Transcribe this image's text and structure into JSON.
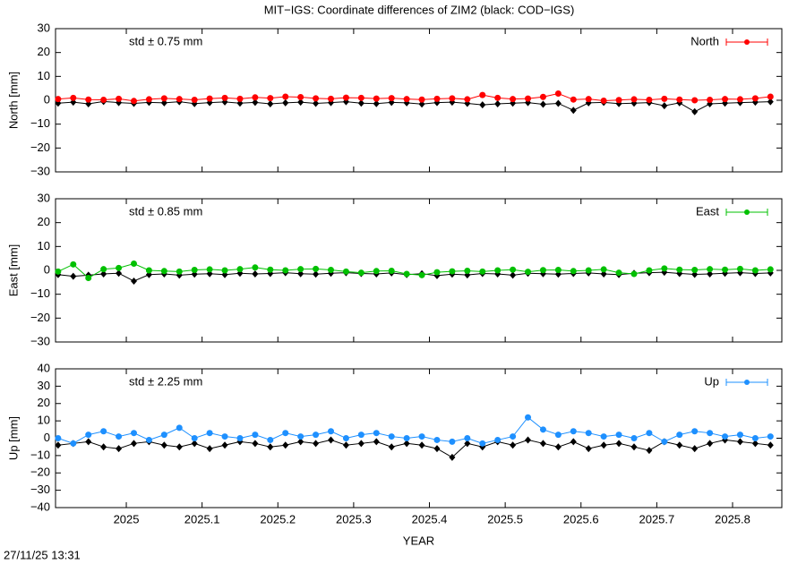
{
  "title": "MIT−IGS: Coordinate differences of ZIM2 (black: COD−IGS)",
  "timestamp": "27/11/25 13:31",
  "chart_data": [
    {
      "type": "scatter",
      "ylabel": "North [mm]",
      "annotation": "std ± 0.75 mm",
      "legend": "upper right",
      "xlim": [
        2024.9066,
        2025.865
      ],
      "xticks": [
        2025,
        2025.1,
        2025.2,
        2025.3,
        2025.4,
        2025.5,
        2025.6,
        2025.7,
        2025.8
      ],
      "ylim": [
        -30,
        30
      ],
      "yticks": [
        {
          "value": -30,
          "label": "−30"
        },
        {
          "value": -20,
          "label": "−20"
        },
        {
          "value": -10,
          "label": "−10"
        },
        0,
        10,
        20,
        30
      ],
      "x": [
        2024.91,
        2024.93,
        2024.95,
        2024.97,
        2024.99,
        2025.01,
        2025.03,
        2025.05,
        2025.07,
        2025.09,
        2025.11,
        2025.13,
        2025.15,
        2025.17,
        2025.19,
        2025.21,
        2025.23,
        2025.25,
        2025.27,
        2025.29,
        2025.31,
        2025.33,
        2025.35,
        2025.37,
        2025.39,
        2025.41,
        2025.43,
        2025.45,
        2025.47,
        2025.49,
        2025.51,
        2025.53,
        2025.55,
        2025.57,
        2025.59,
        2025.61,
        2025.63,
        2025.65,
        2025.67,
        2025.69,
        2025.71,
        2025.73,
        2025.75,
        2025.77,
        2025.79,
        2025.81,
        2025.83,
        2025.85
      ],
      "series": [
        {
          "color": "#000000",
          "values": [
            -1.2,
            -0.8,
            -1.5,
            -0.5,
            -1.0,
            -1.3,
            -0.9,
            -1.1,
            -0.6,
            -1.4,
            -1.0,
            -0.7,
            -1.2,
            -0.9,
            -1.5,
            -1.1,
            -0.8,
            -1.3,
            -1.0,
            -0.6,
            -1.2,
            -1.4,
            -0.9,
            -1.1,
            -1.6,
            -1.0,
            -0.8,
            -1.3,
            -1.9,
            -1.5,
            -1.2,
            -1.0,
            -1.7,
            -1.3,
            -4.2,
            -1.1,
            -0.9,
            -1.4,
            -1.2,
            -1.0,
            -2.3,
            -1.1,
            -4.8,
            -1.5,
            -1.2,
            -1.0,
            -0.8,
            -0.6
          ]
        },
        {
          "name": "North",
          "color": "#ff0000",
          "values": [
            0.5,
            1.0,
            0.3,
            0.2,
            0.6,
            -0.3,
            0.4,
            0.8,
            0.5,
            0.2,
            0.7,
            1.0,
            0.6,
            1.2,
            0.9,
            1.5,
            1.3,
            0.8,
            0.6,
            1.1,
            1.0,
            0.7,
            0.9,
            0.5,
            0.3,
            0.6,
            0.8,
            0.4,
            2.2,
            1.0,
            0.5,
            0.7,
            1.4,
            2.8,
            0.3,
            0.5,
            -0.2,
            0.1,
            0.4,
            0.2,
            0.6,
            0.3,
            0.0,
            0.2,
            0.5,
            0.4,
            0.8,
            1.5
          ]
        }
      ]
    },
    {
      "type": "scatter",
      "ylabel": "East [mm]",
      "annotation": "std ± 0.85 mm",
      "legend": "upper right",
      "xlim": [
        2024.9066,
        2025.865
      ],
      "xticks": [
        2025,
        2025.1,
        2025.2,
        2025.3,
        2025.4,
        2025.5,
        2025.6,
        2025.7,
        2025.8
      ],
      "ylim": [
        -30,
        30
      ],
      "yticks": [
        {
          "value": -30,
          "label": "−30"
        },
        {
          "value": -20,
          "label": "−20"
        },
        {
          "value": -10,
          "label": "−10"
        },
        0,
        10,
        20,
        30
      ],
      "x": [
        2024.91,
        2024.93,
        2024.95,
        2024.97,
        2024.99,
        2025.01,
        2025.03,
        2025.05,
        2025.07,
        2025.09,
        2025.11,
        2025.13,
        2025.15,
        2025.17,
        2025.19,
        2025.21,
        2025.23,
        2025.25,
        2025.27,
        2025.29,
        2025.31,
        2025.33,
        2025.35,
        2025.37,
        2025.39,
        2025.41,
        2025.43,
        2025.45,
        2025.47,
        2025.49,
        2025.51,
        2025.53,
        2025.55,
        2025.57,
        2025.59,
        2025.61,
        2025.63,
        2025.65,
        2025.67,
        2025.69,
        2025.71,
        2025.73,
        2025.75,
        2025.77,
        2025.79,
        2025.81,
        2025.83,
        2025.85
      ],
      "series": [
        {
          "color": "#000000",
          "values": [
            -1.8,
            -2.5,
            -2.0,
            -1.5,
            -1.2,
            -4.5,
            -1.8,
            -1.5,
            -2.0,
            -1.6,
            -1.4,
            -1.8,
            -1.2,
            -1.5,
            -1.3,
            -1.0,
            -1.4,
            -1.6,
            -1.2,
            -1.0,
            -1.3,
            -1.5,
            -1.1,
            -1.8,
            -1.4,
            -2.2,
            -1.6,
            -1.9,
            -1.3,
            -1.5,
            -2.0,
            -1.2,
            -1.4,
            -1.6,
            -1.3,
            -1.1,
            -1.5,
            -1.8,
            -1.2,
            -1.0,
            -0.8,
            -1.3,
            -1.7,
            -1.5,
            -1.2,
            -1.0,
            -1.3,
            -1.1
          ]
        },
        {
          "name": "East",
          "color": "#00c000",
          "values": [
            -0.5,
            2.5,
            -3.2,
            0.5,
            1.0,
            2.8,
            0.0,
            -0.3,
            -0.5,
            0.2,
            0.4,
            0.0,
            0.5,
            1.2,
            0.3,
            0.0,
            0.5,
            0.6,
            0.2,
            -0.5,
            -1.0,
            -0.3,
            -0.2,
            -1.5,
            -2.0,
            -0.8,
            -0.4,
            -0.2,
            -0.5,
            0.0,
            0.3,
            -0.6,
            0.1,
            0.2,
            -0.3,
            0.0,
            0.4,
            -1.0,
            -1.5,
            0.0,
            0.8,
            0.3,
            0.2,
            0.5,
            0.3,
            0.6,
            0.0,
            0.4
          ]
        }
      ]
    },
    {
      "type": "scatter",
      "ylabel": "Up [mm]",
      "annotation": "std ± 2.25 mm",
      "legend": "upper right",
      "xlabel": "YEAR",
      "xlim": [
        2024.9066,
        2025.865
      ],
      "xticks": [
        2025,
        2025.1,
        2025.2,
        2025.3,
        2025.4,
        2025.5,
        2025.6,
        2025.7,
        2025.8
      ],
      "ylim": [
        -40,
        40
      ],
      "yticks": [
        {
          "value": -40,
          "label": "−40"
        },
        {
          "value": -30,
          "label": "−30"
        },
        {
          "value": -20,
          "label": "−20"
        },
        {
          "value": -10,
          "label": "−10"
        },
        0,
        10,
        20,
        30,
        40
      ],
      "x": [
        2024.91,
        2024.93,
        2024.95,
        2024.97,
        2024.99,
        2025.01,
        2025.03,
        2025.05,
        2025.07,
        2025.09,
        2025.11,
        2025.13,
        2025.15,
        2025.17,
        2025.19,
        2025.21,
        2025.23,
        2025.25,
        2025.27,
        2025.29,
        2025.31,
        2025.33,
        2025.35,
        2025.37,
        2025.39,
        2025.41,
        2025.43,
        2025.45,
        2025.47,
        2025.49,
        2025.51,
        2025.53,
        2025.55,
        2025.57,
        2025.59,
        2025.61,
        2025.63,
        2025.65,
        2025.67,
        2025.69,
        2025.71,
        2025.73,
        2025.75,
        2025.77,
        2025.79,
        2025.81,
        2025.83,
        2025.85
      ],
      "series": [
        {
          "color": "#000000",
          "values": [
            -4,
            -3,
            -2,
            -5,
            -6,
            -3,
            -2,
            -4,
            -5,
            -3,
            -6,
            -4,
            -2,
            -3,
            -5,
            -4,
            -2,
            -3,
            -1,
            -4,
            -3,
            -2,
            -5,
            -3,
            -4,
            -6,
            -11,
            -3,
            -5,
            -2,
            -4,
            -1,
            -3,
            -5,
            -2,
            -6,
            -4,
            -3,
            -5,
            -7,
            -2,
            -4,
            -6,
            -3,
            -1,
            -2,
            -3,
            -4
          ]
        },
        {
          "name": "Up",
          "color": "#1e90ff",
          "values": [
            0,
            -3,
            2,
            4,
            1,
            3,
            -1,
            2,
            6,
            0,
            3,
            1,
            0,
            2,
            -1,
            3,
            1,
            2,
            4,
            0,
            2,
            3,
            1,
            0,
            1,
            -1,
            -2,
            0,
            -3,
            -1,
            1,
            12,
            5,
            2,
            4,
            3,
            1,
            2,
            0,
            3,
            -2,
            2,
            4,
            3,
            1,
            2,
            0,
            1
          ]
        }
      ]
    }
  ]
}
